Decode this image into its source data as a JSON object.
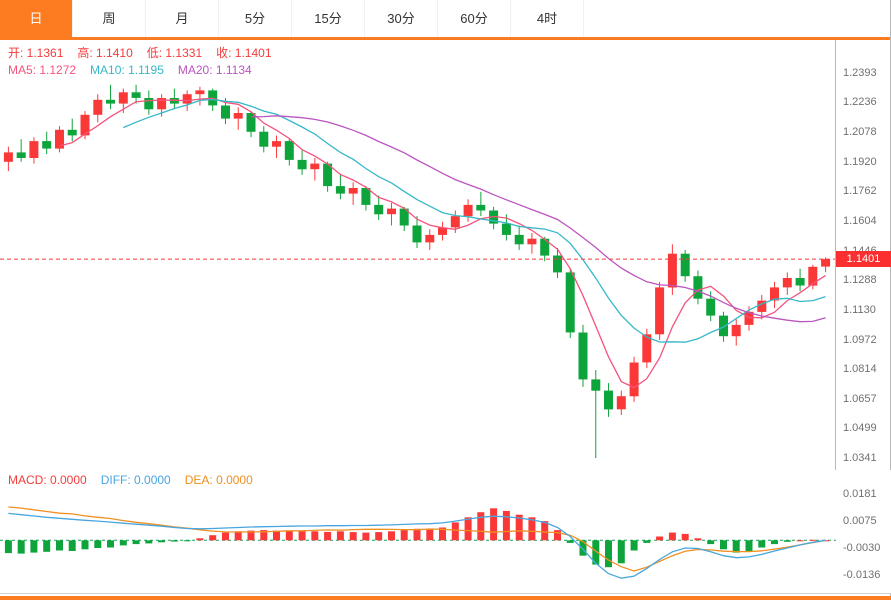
{
  "tabs": [
    "日",
    "周",
    "月",
    "5分",
    "15分",
    "30分",
    "60分",
    "4时"
  ],
  "active_tab": 0,
  "ohlc": {
    "open": "开: 1.1361",
    "high": "高: 1.1410",
    "low": "低: 1.1331",
    "close": "收: 1.1401"
  },
  "ma_labels": {
    "ma5": "MA5: 1.1272",
    "ma10": "MA10: 1.1195",
    "ma20": "MA20: 1.1134"
  },
  "macd_labels": {
    "macd": "MACD: 0.0000",
    "diff": "DIFF: 0.0000",
    "dea": "DEA: 0.0000"
  },
  "current_price": "1.1401",
  "colors": {
    "accent_orange": "#fd7c21",
    "up_red": "#fb3838",
    "down_green": "#0ea43c",
    "ma5": "#f5537d",
    "ma10": "#35b8c8",
    "ma20": "#bb55c0",
    "diff_blue": "#48a6de",
    "dea_orange": "#ef9022",
    "ohlc_text": "#f53b3b",
    "axis_text": "#707070",
    "zero_line": "#18a058",
    "price_tag_bg": "#fb2f2f"
  },
  "chart_data": {
    "type": "candlestick+macd",
    "title": "",
    "legend": [
      "MA5",
      "MA10",
      "MA20",
      "MACD",
      "DIFF",
      "DEA"
    ],
    "price_axis_ticks": [
      "1.2393",
      "1.2236",
      "1.2078",
      "1.1920",
      "1.1762",
      "1.1604",
      "1.1446",
      "1.1288",
      "1.1130",
      "1.0972",
      "1.0814",
      "1.0657",
      "1.0499",
      "1.0341"
    ],
    "price_axis_range": [
      1.0341,
      1.2393
    ],
    "macd_axis_ticks": [
      "0.0181",
      "0.0075",
      "-0.0030",
      "-0.0136"
    ],
    "current_price_value": 1.1401,
    "candles": [
      [
        1.192,
        1.2,
        1.187,
        1.197
      ],
      [
        1.197,
        1.204,
        1.192,
        1.194
      ],
      [
        1.194,
        1.205,
        1.191,
        1.203
      ],
      [
        1.203,
        1.208,
        1.196,
        1.199
      ],
      [
        1.199,
        1.211,
        1.197,
        1.209
      ],
      [
        1.209,
        1.215,
        1.203,
        1.206
      ],
      [
        1.206,
        1.219,
        1.204,
        1.217
      ],
      [
        1.217,
        1.228,
        1.213,
        1.225
      ],
      [
        1.225,
        1.233,
        1.22,
        1.223
      ],
      [
        1.223,
        1.231,
        1.218,
        1.229
      ],
      [
        1.229,
        1.233,
        1.223,
        1.226
      ],
      [
        1.226,
        1.23,
        1.217,
        1.22
      ],
      [
        1.22,
        1.228,
        1.216,
        1.226
      ],
      [
        1.226,
        1.231,
        1.22,
        1.223
      ],
      [
        1.223,
        1.23,
        1.219,
        1.228
      ],
      [
        1.228,
        1.232,
        1.222,
        1.23
      ],
      [
        1.23,
        1.231,
        1.219,
        1.222
      ],
      [
        1.222,
        1.226,
        1.212,
        1.215
      ],
      [
        1.215,
        1.221,
        1.209,
        1.218
      ],
      [
        1.218,
        1.219,
        1.205,
        1.208
      ],
      [
        1.208,
        1.211,
        1.197,
        1.2
      ],
      [
        1.2,
        1.206,
        1.194,
        1.203
      ],
      [
        1.203,
        1.204,
        1.19,
        1.193
      ],
      [
        1.193,
        1.198,
        1.185,
        1.188
      ],
      [
        1.188,
        1.194,
        1.182,
        1.191
      ],
      [
        1.191,
        1.192,
        1.176,
        1.179
      ],
      [
        1.179,
        1.185,
        1.172,
        1.175
      ],
      [
        1.175,
        1.181,
        1.169,
        1.178
      ],
      [
        1.178,
        1.179,
        1.166,
        1.169
      ],
      [
        1.169,
        1.174,
        1.161,
        1.164
      ],
      [
        1.164,
        1.17,
        1.158,
        1.167
      ],
      [
        1.167,
        1.168,
        1.155,
        1.158
      ],
      [
        1.158,
        1.163,
        1.146,
        1.149
      ],
      [
        1.149,
        1.156,
        1.145,
        1.153
      ],
      [
        1.153,
        1.16,
        1.15,
        1.157
      ],
      [
        1.157,
        1.166,
        1.154,
        1.163
      ],
      [
        1.163,
        1.172,
        1.16,
        1.169
      ],
      [
        1.169,
        1.176,
        1.163,
        1.166
      ],
      [
        1.166,
        1.168,
        1.156,
        1.159
      ],
      [
        1.159,
        1.164,
        1.15,
        1.153
      ],
      [
        1.153,
        1.158,
        1.145,
        1.148
      ],
      [
        1.148,
        1.154,
        1.143,
        1.151
      ],
      [
        1.151,
        1.152,
        1.139,
        1.142
      ],
      [
        1.142,
        1.146,
        1.13,
        1.133
      ],
      [
        1.133,
        1.135,
        1.098,
        1.101
      ],
      [
        1.101,
        1.105,
        1.072,
        1.076
      ],
      [
        1.076,
        1.081,
        1.0341,
        1.07
      ],
      [
        1.07,
        1.074,
        1.056,
        1.06
      ],
      [
        1.06,
        1.07,
        1.057,
        1.067
      ],
      [
        1.067,
        1.088,
        1.064,
        1.085
      ],
      [
        1.085,
        1.103,
        1.082,
        1.1
      ],
      [
        1.1,
        1.128,
        1.097,
        1.125
      ],
      [
        1.125,
        1.148,
        1.121,
        1.143
      ],
      [
        1.143,
        1.145,
        1.128,
        1.131
      ],
      [
        1.131,
        1.134,
        1.116,
        1.119
      ],
      [
        1.119,
        1.123,
        1.107,
        1.11
      ],
      [
        1.11,
        1.112,
        1.096,
        1.099
      ],
      [
        1.099,
        1.108,
        1.094,
        1.105
      ],
      [
        1.105,
        1.115,
        1.102,
        1.112
      ],
      [
        1.112,
        1.121,
        1.108,
        1.118
      ],
      [
        1.118,
        1.128,
        1.114,
        1.125
      ],
      [
        1.125,
        1.133,
        1.121,
        1.13
      ],
      [
        1.13,
        1.135,
        1.123,
        1.126
      ],
      [
        1.126,
        1.137,
        1.124,
        1.136
      ],
      [
        1.1361,
        1.141,
        1.1331,
        1.1401
      ]
    ],
    "macd": {
      "hist": [
        -0.005,
        -0.0052,
        -0.0048,
        -0.0045,
        -0.004,
        -0.0042,
        -0.0035,
        -0.003,
        -0.0028,
        -0.002,
        -0.0015,
        -0.0012,
        -0.0008,
        -0.0005,
        -0.0003,
        0.0008,
        0.002,
        0.003,
        0.0035,
        0.0038,
        0.004,
        0.0038,
        0.0036,
        0.0038,
        0.0035,
        0.0033,
        0.0035,
        0.0032,
        0.003,
        0.0032,
        0.0035,
        0.004,
        0.0045,
        0.0042,
        0.005,
        0.007,
        0.009,
        0.011,
        0.0125,
        0.0115,
        0.01,
        0.009,
        0.0075,
        0.004,
        -0.001,
        -0.006,
        -0.0095,
        -0.0105,
        -0.009,
        -0.004,
        -0.001,
        0.0015,
        0.003,
        0.0025,
        0.0008,
        -0.0015,
        -0.0035,
        -0.0048,
        -0.0042,
        -0.0028,
        -0.0015,
        -0.0006,
        0.0,
        0.0002,
        0.0
      ],
      "diff": [
        0.0105,
        0.01,
        0.0095,
        0.009,
        0.0086,
        0.0082,
        0.0078,
        0.0075,
        0.0071,
        0.0067,
        0.0063,
        0.0059,
        0.0055,
        0.005,
        0.0046,
        0.0045,
        0.0046,
        0.0048,
        0.005,
        0.0052,
        0.0053,
        0.0054,
        0.0055,
        0.0056,
        0.0056,
        0.0057,
        0.0057,
        0.0058,
        0.0058,
        0.0059,
        0.006,
        0.0062,
        0.0064,
        0.0065,
        0.0068,
        0.0075,
        0.0083,
        0.009,
        0.0094,
        0.0092,
        0.0087,
        0.008,
        0.007,
        0.005,
        0.0015,
        -0.0035,
        -0.009,
        -0.013,
        -0.0148,
        -0.014,
        -0.011,
        -0.0075,
        -0.0045,
        -0.003,
        -0.0032,
        -0.0045,
        -0.006,
        -0.0068,
        -0.0065,
        -0.0055,
        -0.0042,
        -0.003,
        -0.0018,
        -0.0008,
        0.0
      ]
    }
  }
}
